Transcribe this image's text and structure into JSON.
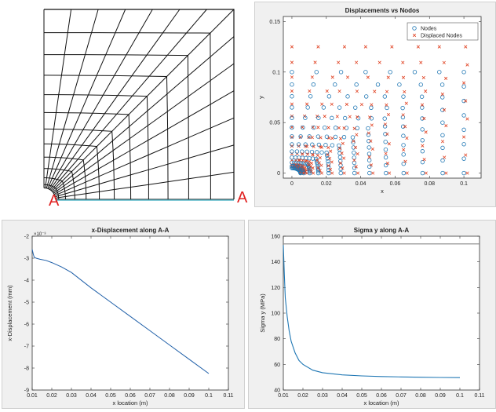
{
  "chart_data": [
    {
      "type": "diagram",
      "title": "",
      "labels": {
        "left_point": "A",
        "right_point": "A"
      },
      "mesh": {
        "rows": 14,
        "cols": 12,
        "hole": "quarter-circle"
      }
    },
    {
      "type": "scatter",
      "title": "Displacements vs Nodos",
      "xlabel": "x",
      "ylabel": "y",
      "xlim": [
        -0.005,
        0.11
      ],
      "ylim": [
        -0.005,
        0.155
      ],
      "xticks": [
        "0",
        "0.02",
        "0.04",
        "0.06",
        "0.08",
        "0.1"
      ],
      "yticks": [
        "0",
        "0.05",
        "0.1",
        "0.15"
      ],
      "series": [
        {
          "name": "Nodes",
          "marker": "o",
          "color": "#1f77b4",
          "grid": {
            "cols": 12,
            "rows": 14,
            "hole_radius": 0.005,
            "size": 0.1
          }
        },
        {
          "name": "Displaced Nodes",
          "marker": "x",
          "color": "#e04020",
          "grid": {
            "cols": 12,
            "rows": 14,
            "hole_radius": 0.005,
            "size": 0.1
          },
          "scale": 1.25
        }
      ],
      "legend": "top-right"
    },
    {
      "type": "line",
      "title": "x-Displacement along A-A",
      "xlabel": "x location (m)",
      "ylabel": "x-Displacement (mm)",
      "exponent_label": "×10⁻³",
      "xlim": [
        0.01,
        0.11
      ],
      "ylim": [
        -9,
        -2
      ],
      "xticks": [
        "0.01",
        "0.02",
        "0.03",
        "0.04",
        "0.05",
        "0.06",
        "0.07",
        "0.08",
        "0.09",
        "0.1",
        "0.11"
      ],
      "yticks": [
        "-2",
        "-3",
        "-4",
        "-5",
        "-6",
        "-7",
        "-8",
        "-9"
      ],
      "x": [
        0.01,
        0.0105,
        0.011,
        0.012,
        0.014,
        0.017,
        0.02,
        0.025,
        0.03,
        0.04,
        0.05,
        0.06,
        0.07,
        0.08,
        0.09,
        0.1
      ],
      "y": [
        -2.6,
        -2.8,
        -2.95,
        -3.0,
        -3.05,
        -3.1,
        -3.2,
        -3.4,
        -3.65,
        -4.35,
        -5.0,
        -5.65,
        -6.3,
        -6.95,
        -7.6,
        -8.25
      ],
      "color": "#1f5fa8"
    },
    {
      "type": "line",
      "title": "Sigma y along A-A",
      "xlabel": "x location (m)",
      "ylabel": "Sigma y (MPa)",
      "xlim": [
        0.01,
        0.11
      ],
      "ylim": [
        40,
        160
      ],
      "xticks": [
        "0.01",
        "0.02",
        "0.03",
        "0.04",
        "0.05",
        "0.06",
        "0.07",
        "0.08",
        "0.09",
        "0.1",
        "0.11"
      ],
      "yticks": [
        "40",
        "60",
        "80",
        "100",
        "120",
        "140",
        "160"
      ],
      "x": [
        0.01,
        0.0105,
        0.011,
        0.012,
        0.013,
        0.014,
        0.016,
        0.018,
        0.02,
        0.025,
        0.03,
        0.04,
        0.05,
        0.06,
        0.07,
        0.08,
        0.09,
        0.1
      ],
      "y": [
        153,
        130,
        112,
        97,
        86,
        78,
        69,
        63,
        60,
        55.5,
        53.5,
        51.8,
        51,
        50.5,
        50.2,
        50,
        49.8,
        49.7
      ],
      "reference_line": 154,
      "color": "#1f77b4",
      "reference_color": "#888888"
    }
  ]
}
